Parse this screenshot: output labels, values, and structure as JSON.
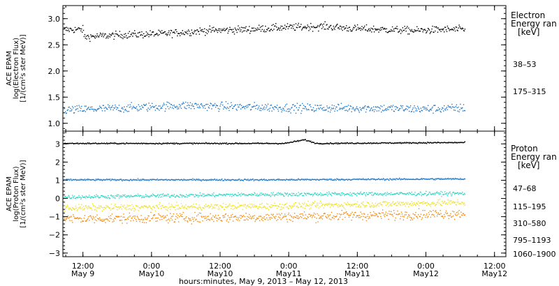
{
  "chart_data": [
    {
      "type": "scatter",
      "panel": "electron",
      "ylabel_lines": [
        "ACE EPAM",
        "log(Electron Flux)",
        "[1/(cm²s ster MeV)]"
      ],
      "ylim": [
        0.85,
        3.25
      ],
      "yticks": [
        1.0,
        1.5,
        2.0,
        2.5,
        3.0
      ],
      "ytick_labels": [
        "1.0",
        "1.5",
        "2.0",
        "2.5",
        "3.0"
      ],
      "legend_title_lines": [
        "Electron",
        "Energy ran",
        "[keV]"
      ],
      "series": [
        {
          "name": "38–53",
          "color": "#000000",
          "base": [
            [
              0.05,
              2.66
            ],
            [
              0.15,
              2.7
            ],
            [
              0.25,
              2.72
            ],
            [
              0.35,
              2.78
            ],
            [
              0.45,
              2.8
            ],
            [
              0.55,
              2.84
            ],
            [
              0.65,
              2.86
            ],
            [
              0.72,
              2.82
            ],
            [
              0.8,
              2.8
            ],
            [
              0.88,
              2.78
            ],
            [
              0.95,
              2.8
            ],
            [
              1.0,
              2.8
            ]
          ],
          "spread": 0.12
        },
        {
          "name": "175–315",
          "color": "#1f78c8",
          "base": [
            [
              0.0,
              1.26
            ],
            [
              0.15,
              1.3
            ],
            [
              0.3,
              1.35
            ],
            [
              0.45,
              1.32
            ],
            [
              0.6,
              1.3
            ],
            [
              0.75,
              1.3
            ],
            [
              0.9,
              1.28
            ],
            [
              1.0,
              1.3
            ]
          ],
          "spread": 0.14
        }
      ]
    },
    {
      "type": "scatter",
      "panel": "proton",
      "ylabel_lines": [
        "ACE EPAM",
        "log(Proton Flux)",
        "[1/(cm²s ster MeV)]"
      ],
      "ylim": [
        -3.2,
        3.7
      ],
      "yticks": [
        -3,
        -2,
        -1,
        0,
        1,
        2,
        3
      ],
      "ytick_labels": [
        "−3",
        "−2",
        "−1",
        "0",
        "1",
        "2",
        "3"
      ],
      "legend_title_lines": [
        "Proton",
        "Energy ran",
        "[keV]"
      ],
      "series": [
        {
          "name": "47–68",
          "color": "#000000",
          "base": [
            [
              0.0,
              3.05
            ],
            [
              0.55,
              3.05
            ],
            [
              0.6,
              3.25
            ],
            [
              0.63,
              3.05
            ],
            [
              1.0,
              3.1
            ]
          ],
          "spread": 0.06
        },
        {
          "name": "115–195",
          "color": "#1f78c8",
          "base": [
            [
              0.0,
              1.05
            ],
            [
              0.5,
              1.05
            ],
            [
              1.0,
              1.1
            ]
          ],
          "spread": 0.08
        },
        {
          "name": "310–580",
          "color": "#2ed4c6",
          "base": [
            [
              0.0,
              0.1
            ],
            [
              0.5,
              0.25
            ],
            [
              1.0,
              0.3
            ]
          ],
          "spread": 0.18
        },
        {
          "name": "795–1193",
          "color": "#f0e020",
          "base": [
            [
              0.0,
              -0.5
            ],
            [
              0.5,
              -0.4
            ],
            [
              1.0,
              -0.2
            ]
          ],
          "spread": 0.3
        },
        {
          "name": "1060–1900",
          "color": "#f08a10",
          "base": [
            [
              0.0,
              -1.1
            ],
            [
              0.5,
              -1.0
            ],
            [
              1.0,
              -0.8
            ]
          ],
          "spread": 0.45
        }
      ]
    }
  ],
  "x_axis": {
    "xlim": [
      0.354,
      3.583
    ],
    "data_end": 3.281,
    "ticks": [
      {
        "day": 0.5,
        "time": "12:00",
        "date": "May 9"
      },
      {
        "day": 1.0,
        "time": "0:00",
        "date": "May10"
      },
      {
        "day": 1.5,
        "time": "12:00",
        "date": "May10"
      },
      {
        "day": 2.0,
        "time": "0:00",
        "date": "May11"
      },
      {
        "day": 2.5,
        "time": "12:00",
        "date": "May11"
      },
      {
        "day": 3.0,
        "time": "0:00",
        "date": "May12"
      },
      {
        "day": 3.5,
        "time": "12:00",
        "date": "May12"
      }
    ],
    "xlabel": "hours:minutes, May  9, 2013 – May 12, 2013"
  }
}
